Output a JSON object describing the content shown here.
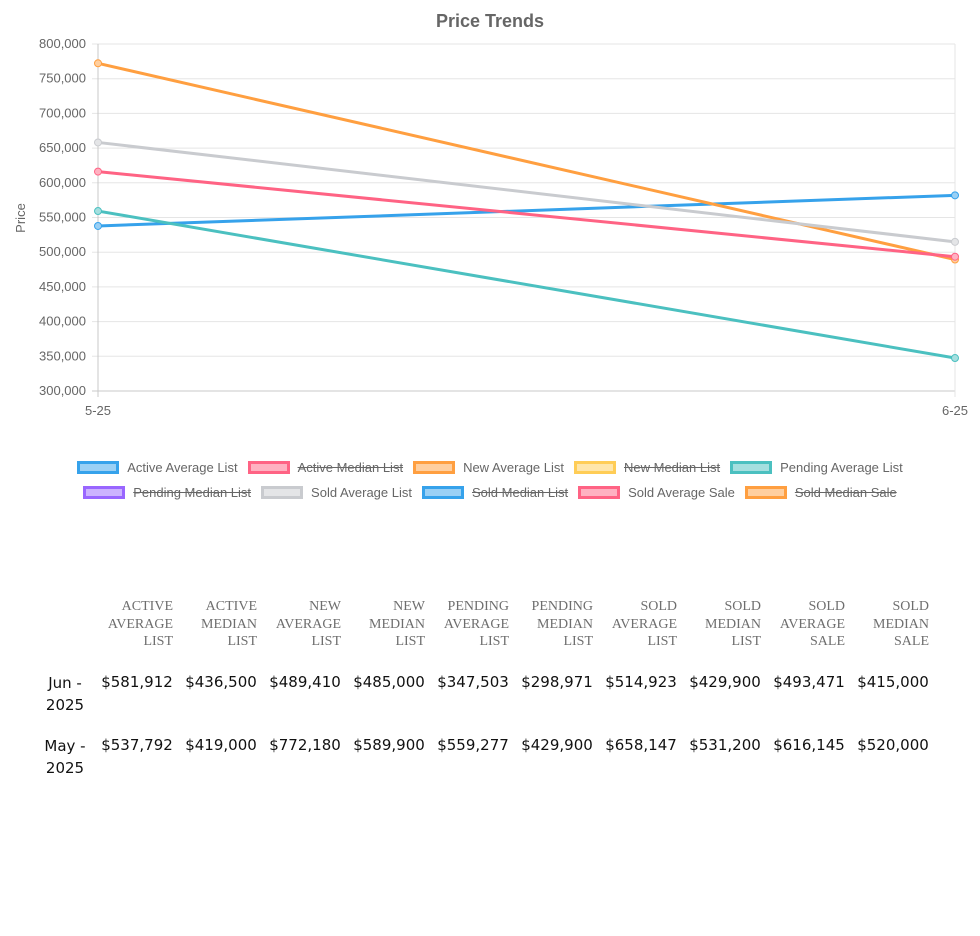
{
  "chart_data": {
    "type": "line",
    "title": "Price Trends",
    "xlabel": "",
    "ylabel": "Price",
    "x": [
      "5-25",
      "6-25"
    ],
    "ylim": [
      300000,
      800000
    ],
    "yticks": [
      300000,
      350000,
      400000,
      450000,
      500000,
      550000,
      600000,
      650000,
      700000,
      750000,
      800000
    ],
    "ytick_labels": [
      "300,000",
      "350,000",
      "400,000",
      "450,000",
      "500,000",
      "550,000",
      "600,000",
      "650,000",
      "700,000",
      "750,000",
      "800,000"
    ],
    "grid": true,
    "legend_position": "bottom",
    "series": [
      {
        "name": "Active Average List",
        "color": "#36a2eb",
        "fill": "#9ad0f5",
        "hidden": false,
        "values": [
          537792,
          581912
        ]
      },
      {
        "name": "Active Median List",
        "color": "#ff6384",
        "fill": "#ffb1c1",
        "hidden": true,
        "values": [
          419000,
          436500
        ]
      },
      {
        "name": "New Average List",
        "color": "#ff9f40",
        "fill": "#ffcf9f",
        "hidden": false,
        "values": [
          772180,
          489410
        ]
      },
      {
        "name": "New Median List",
        "color": "#ffcd56",
        "fill": "#ffe6aa",
        "hidden": true,
        "values": [
          589900,
          485000
        ]
      },
      {
        "name": "Pending Average List",
        "color": "#4bc0c0",
        "fill": "#a5dfdf",
        "hidden": false,
        "values": [
          559277,
          347503
        ]
      },
      {
        "name": "Pending Median List",
        "color": "#9966ff",
        "fill": "#ccb2ff",
        "hidden": true,
        "values": [
          429900,
          298971
        ]
      },
      {
        "name": "Sold Average List",
        "color": "#c9cbcf",
        "fill": "#e4e5e7",
        "hidden": false,
        "values": [
          658147,
          514923
        ]
      },
      {
        "name": "Sold Median List",
        "color": "#36a2eb",
        "fill": "#9ad0f5",
        "hidden": true,
        "values": [
          531200,
          429900
        ]
      },
      {
        "name": "Sold Average Sale",
        "color": "#ff6384",
        "fill": "#ffb1c1",
        "hidden": false,
        "values": [
          616145,
          493471
        ]
      },
      {
        "name": "Sold Median Sale",
        "color": "#ff9f40",
        "fill": "#ffcf9f",
        "hidden": true,
        "values": [
          520000,
          415000
        ]
      }
    ]
  },
  "table": {
    "columns": [
      "Active Average List",
      "Active Median List",
      "New Average List",
      "New Median List",
      "Pending Average List",
      "Pending Median List",
      "Sold Average List",
      "Sold Median List",
      "Sold Average Sale",
      "Sold Median Sale"
    ],
    "rows": [
      {
        "label": "Jun - 2025",
        "cells": [
          "$581,912",
          "$436,500",
          "$489,410",
          "$485,000",
          "$347,503",
          "$298,971",
          "$514,923",
          "$429,900",
          "$493,471",
          "$415,000"
        ]
      },
      {
        "label": "May - 2025",
        "cells": [
          "$537,792",
          "$419,000",
          "$772,180",
          "$589,900",
          "$559,277",
          "$429,900",
          "$658,147",
          "$531,200",
          "$616,145",
          "$520,000"
        ]
      }
    ]
  }
}
